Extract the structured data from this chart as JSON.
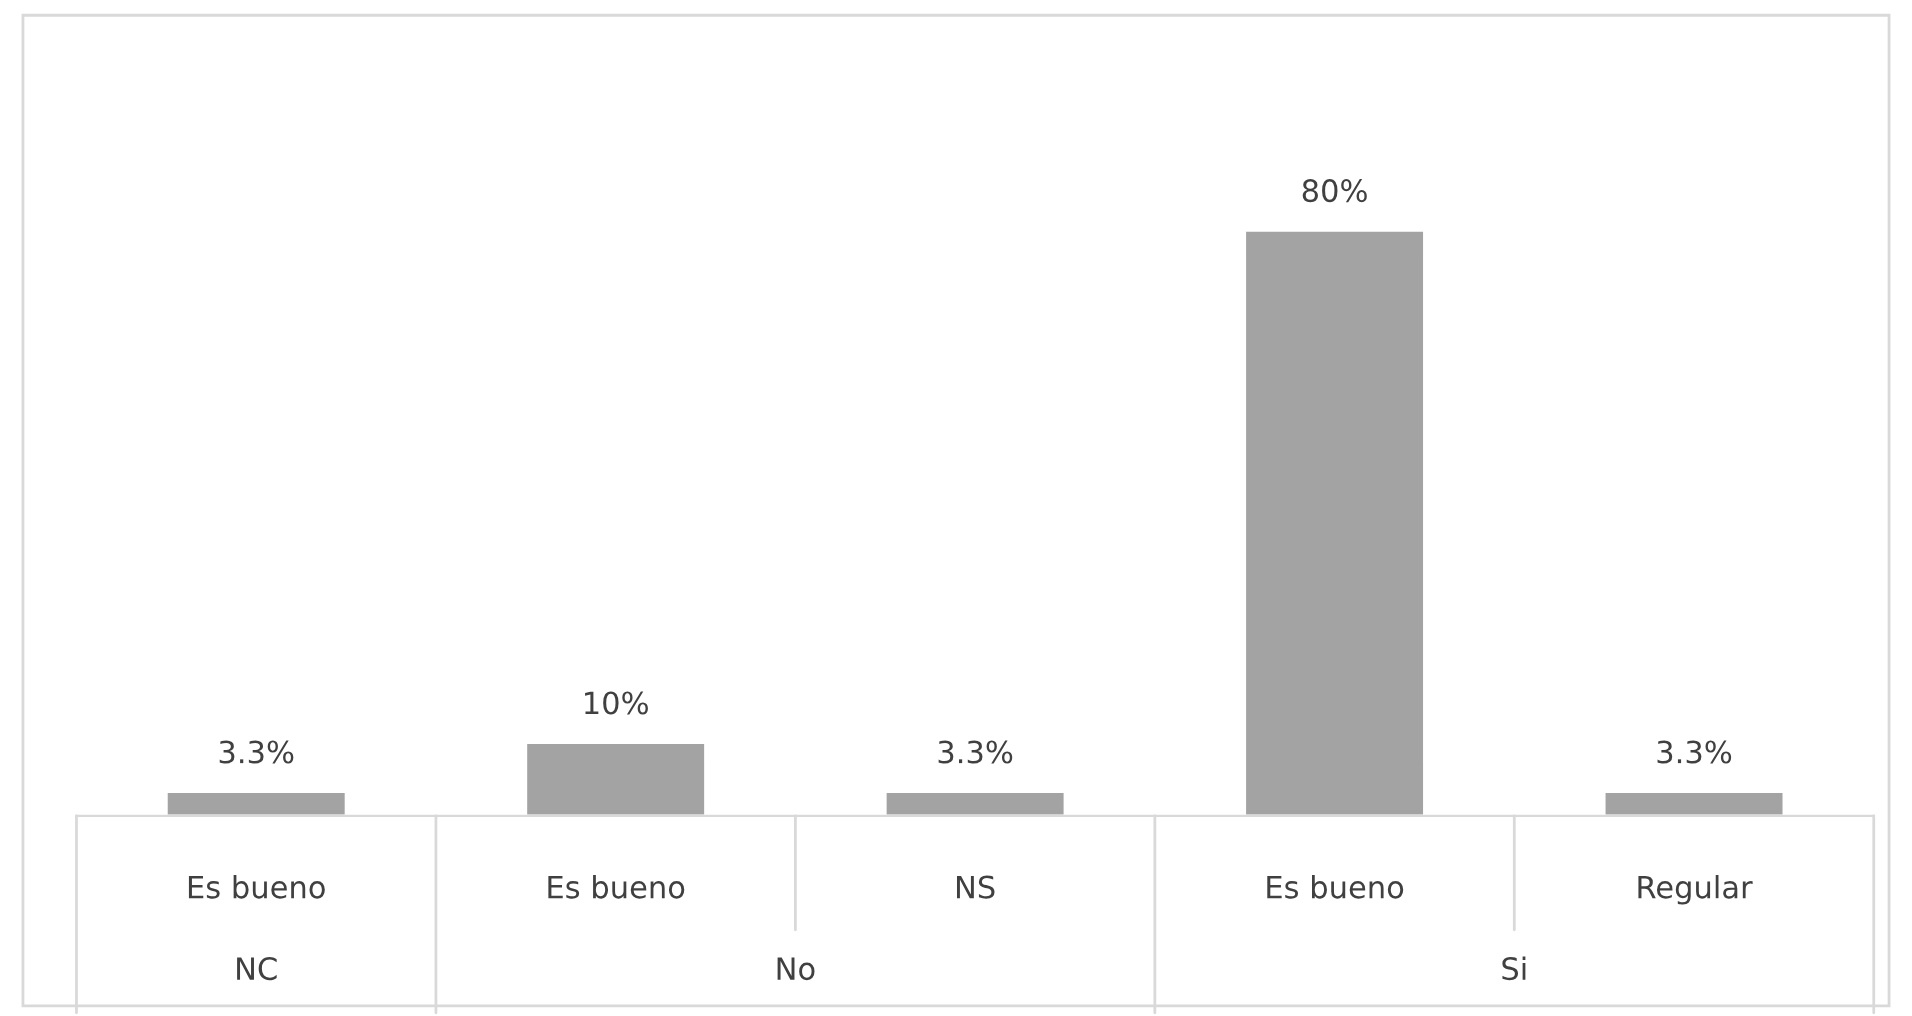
{
  "chart_data": {
    "type": "bar",
    "categories": [
      "Es bueno",
      "Es bueno",
      "NS",
      "Es bueno",
      "Regular"
    ],
    "values": [
      3.3,
      10,
      3.3,
      80,
      3.3
    ],
    "value_labels": [
      "3.3%",
      "10%",
      "3.3%",
      "80%",
      "3.3%"
    ],
    "color": "#a3a3a3",
    "annotations": [
      "NC",
      "No",
      "Si"
    ],
    "legend": false
  }
}
